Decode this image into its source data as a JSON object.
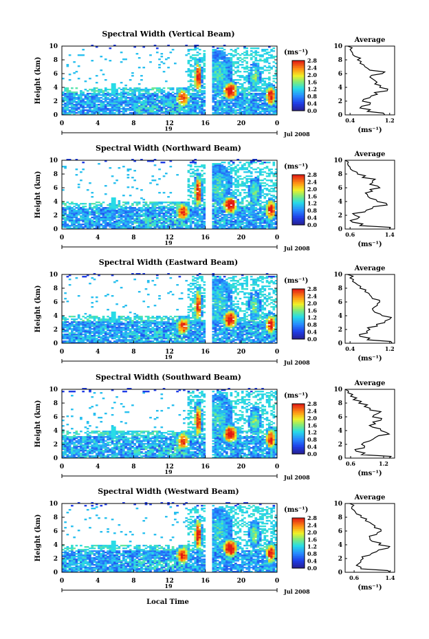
{
  "figure": {
    "x_title": "Local Time",
    "date_label": "Jul 2008",
    "day_label": "19",
    "ylabel": "Height (km)",
    "colorbar_unit": "(ms⁻¹)",
    "avg_title": "Average",
    "avg_xlabel": "(ms⁻¹)"
  },
  "chart_data": [
    {
      "type": "heatmap",
      "title": "Spectral Width (Vertical Beam)",
      "ylabel": "Height (km)",
      "xlabel": "Local Time",
      "x_ticks": [
        "0",
        "4",
        "8",
        "12",
        "16",
        "20",
        "0"
      ],
      "y_ticks": [
        "0",
        "2",
        "4",
        "6",
        "8",
        "10"
      ],
      "xlim": [
        0,
        24
      ],
      "ylim": [
        0,
        10
      ],
      "colorbar": {
        "label": "(ms⁻¹)",
        "range": [
          0,
          2.8
        ],
        "ticks": [
          "0.0",
          "0.4",
          "0.8",
          "1.2",
          "1.6",
          "2.0",
          "2.4",
          "2.8"
        ]
      },
      "profile": {
        "title": "Average",
        "xlabel": "(ms⁻¹)",
        "xlim": [
          0.3,
          1.3
        ],
        "x_ticks": [
          "0.4",
          "1.2"
        ],
        "y_ticks": [
          "0",
          "2",
          "4",
          "6",
          "8",
          "10"
        ],
        "heights": [
          0,
          0.5,
          1,
          1.5,
          2,
          2.5,
          3,
          3.5,
          4,
          4.5,
          5,
          5.5,
          6,
          6.5,
          7,
          7.5,
          8,
          8.5,
          9,
          9.5,
          10
        ],
        "values": [
          1.1,
          0.75,
          0.6,
          0.8,
          0.65,
          0.8,
          0.95,
          1.15,
          1.0,
          0.9,
          0.9,
          0.8,
          1.05,
          0.8,
          0.7,
          0.6,
          0.55,
          0.5,
          0.45,
          0.4,
          0.35
        ]
      }
    },
    {
      "type": "heatmap",
      "title": "Spectral Width (Northward Beam)",
      "ylabel": "Height (km)",
      "xlabel": "Local Time",
      "x_ticks": [
        "0",
        "4",
        "8",
        "12",
        "16",
        "20",
        "0"
      ],
      "y_ticks": [
        "0",
        "2",
        "4",
        "6",
        "8",
        "10"
      ],
      "xlim": [
        0,
        24
      ],
      "ylim": [
        0,
        10
      ],
      "colorbar": {
        "label": "(ms⁻¹)",
        "range": [
          0,
          2.8
        ],
        "ticks": [
          "0.0",
          "0.4",
          "0.8",
          "1.2",
          "1.6",
          "2.0",
          "2.4",
          "2.8"
        ]
      },
      "profile": {
        "title": "Average",
        "xlabel": "(ms⁻¹)",
        "xlim": [
          0.5,
          1.5
        ],
        "x_ticks": [
          "0.6",
          "1.4"
        ],
        "y_ticks": [
          "0",
          "2",
          "4",
          "6",
          "8",
          "10"
        ],
        "heights": [
          0,
          0.5,
          1,
          1.5,
          2,
          2.5,
          3,
          3.5,
          4,
          4.5,
          5,
          5.5,
          6,
          6.5,
          7,
          7.5,
          8,
          8.5,
          9,
          9.5,
          10
        ],
        "values": [
          1.4,
          0.8,
          0.65,
          0.75,
          0.7,
          0.9,
          1.05,
          1.35,
          1.15,
          1.0,
          0.95,
          1.05,
          1.2,
          1.0,
          1.05,
          0.85,
          0.75,
          0.65,
          0.6,
          0.55,
          0.5
        ]
      }
    },
    {
      "type": "heatmap",
      "title": "Spectral Width (Eastward Beam)",
      "ylabel": "Height (km)",
      "xlabel": "Local Time",
      "x_ticks": [
        "0",
        "4",
        "8",
        "12",
        "16",
        "20",
        "0"
      ],
      "y_ticks": [
        "0",
        "2",
        "4",
        "6",
        "8",
        "10"
      ],
      "xlim": [
        0,
        24
      ],
      "ylim": [
        0,
        10
      ],
      "colorbar": {
        "label": "(ms⁻¹)",
        "range": [
          0,
          2.8
        ],
        "ticks": [
          "0.0",
          "0.4",
          "0.8",
          "1.2",
          "1.6",
          "2.0",
          "2.4",
          "2.8"
        ]
      },
      "profile": {
        "title": "Average",
        "xlabel": "(ms⁻¹)",
        "xlim": [
          0.3,
          1.3
        ],
        "x_ticks": [
          "0.4",
          "1.2"
        ],
        "y_ticks": [
          "0",
          "2",
          "4",
          "6",
          "8",
          "10"
        ],
        "heights": [
          0,
          0.5,
          1,
          1.5,
          2,
          2.5,
          3,
          3.5,
          4,
          4.5,
          5,
          5.5,
          6,
          6.5,
          7,
          7.5,
          8,
          8.5,
          9,
          9.5,
          10
        ],
        "values": [
          1.25,
          0.75,
          0.6,
          0.75,
          0.8,
          0.95,
          1.1,
          1.2,
          1.05,
          0.9,
          0.85,
          0.95,
          1.0,
          0.85,
          0.8,
          0.7,
          0.6,
          0.55,
          0.45,
          0.4,
          0.35
        ]
      }
    },
    {
      "type": "heatmap",
      "title": "Spectral Width (Southward Beam)",
      "ylabel": "Height (km)",
      "xlabel": "Local Time",
      "x_ticks": [
        "0",
        "4",
        "8",
        "12",
        "16",
        "20",
        "0"
      ],
      "y_ticks": [
        "0",
        "2",
        "4",
        "6",
        "8",
        "10"
      ],
      "xlim": [
        0,
        24
      ],
      "ylim": [
        0,
        10
      ],
      "colorbar": {
        "label": "(ms⁻¹)",
        "range": [
          0,
          2.8
        ],
        "ticks": [
          "0.0",
          "0.4",
          "0.8",
          "1.2",
          "1.6",
          "2.0",
          "2.4",
          "2.8"
        ]
      },
      "profile": {
        "title": "Average",
        "xlabel": "(ms⁻¹)",
        "xlim": [
          0.5,
          1.4
        ],
        "x_ticks": [
          "0.6",
          "1.2"
        ],
        "y_ticks": [
          "0",
          "2",
          "4",
          "6",
          "8",
          "10"
        ],
        "heights": [
          0,
          0.5,
          1,
          1.5,
          2,
          2.5,
          3,
          3.5,
          4,
          4.5,
          5,
          5.5,
          6,
          6.5,
          7,
          7.5,
          8,
          8.5,
          9,
          9.5,
          10
        ],
        "values": [
          1.3,
          0.8,
          0.7,
          0.85,
          0.8,
          0.95,
          1.05,
          1.3,
          1.15,
          1.0,
          1.05,
          1.15,
          1.0,
          1.1,
          0.95,
          0.85,
          0.75,
          0.65,
          0.6,
          0.55,
          0.5
        ]
      }
    },
    {
      "type": "heatmap",
      "title": "Spectral Width (Westward Beam)",
      "ylabel": "Height (km)",
      "xlabel": "Local Time",
      "x_ticks": [
        "0",
        "4",
        "8",
        "12",
        "16",
        "20",
        "0"
      ],
      "y_ticks": [
        "0",
        "2",
        "4",
        "6",
        "8",
        "10"
      ],
      "xlim": [
        0,
        24
      ],
      "ylim": [
        0,
        10
      ],
      "colorbar": {
        "label": "(ms⁻¹)",
        "range": [
          0,
          2.8
        ],
        "ticks": [
          "0.0",
          "0.4",
          "0.8",
          "1.2",
          "1.6",
          "2.0",
          "2.4",
          "2.8"
        ]
      },
      "profile": {
        "title": "Average",
        "xlabel": "(ms⁻¹)",
        "xlim": [
          0.4,
          1.5
        ],
        "x_ticks": [
          "0.6",
          "1.4"
        ],
        "y_ticks": [
          "0",
          "2",
          "4",
          "6",
          "8",
          "10"
        ],
        "heights": [
          0,
          0.5,
          1,
          1.5,
          2,
          2.5,
          3,
          3.5,
          4,
          4.5,
          5,
          5.5,
          6,
          6.5,
          7,
          7.5,
          8,
          8.5,
          9,
          9.5,
          10
        ],
        "values": [
          1.4,
          0.75,
          0.65,
          0.75,
          0.8,
          0.95,
          1.1,
          1.35,
          1.15,
          1.0,
          0.95,
          1.1,
          1.2,
          1.05,
          1.0,
          0.85,
          0.75,
          0.65,
          0.6,
          0.55,
          0.5
        ]
      }
    }
  ]
}
